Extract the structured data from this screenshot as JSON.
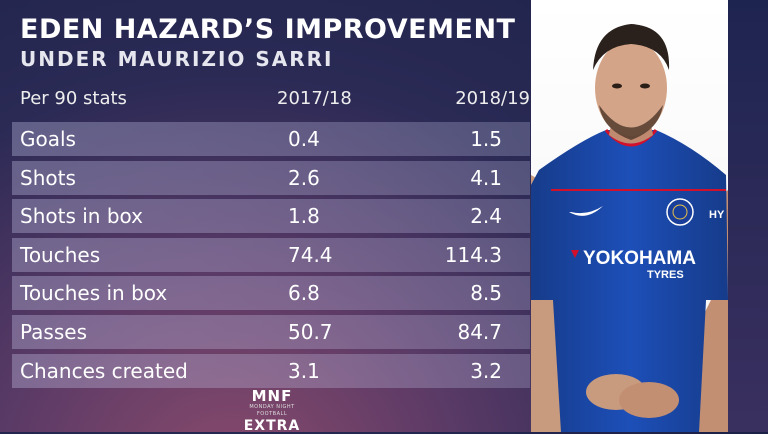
{
  "title": "EDEN HAZARD’S IMPROVEMENT",
  "subtitle": "UNDER MAURIZIO SARRI",
  "header": {
    "label": "Per 90 stats",
    "col_a": "2017/18",
    "col_b": "2018/19"
  },
  "rows": [
    {
      "stat": "Goals",
      "a": "0.4",
      "b": "1.5"
    },
    {
      "stat": "Shots",
      "a": "2.6",
      "b": "4.1"
    },
    {
      "stat": "Shots in box",
      "a": "1.8",
      "b": "2.4"
    },
    {
      "stat": "Touches",
      "a": "74.4",
      "b": "114.3"
    },
    {
      "stat": "Touches in box",
      "a": "6.8",
      "b": "8.5"
    },
    {
      "stat": "Passes",
      "a": "50.7",
      "b": "84.7"
    },
    {
      "stat": "Chances created",
      "a": "3.1",
      "b": "3.2"
    }
  ],
  "logo": {
    "mnf": "MNF",
    "sub": "MONDAY NIGHT FOOTBALL",
    "extra": "EXTRA"
  },
  "photo": {
    "sponsor": "YOKOHAMA",
    "sponsor_sub": "TYRES",
    "sleeve_text": "HY"
  },
  "colors": {
    "kit_blue": "#1d4fb8",
    "accent_red": "#d2102c",
    "panel_white": "#ffffff"
  }
}
